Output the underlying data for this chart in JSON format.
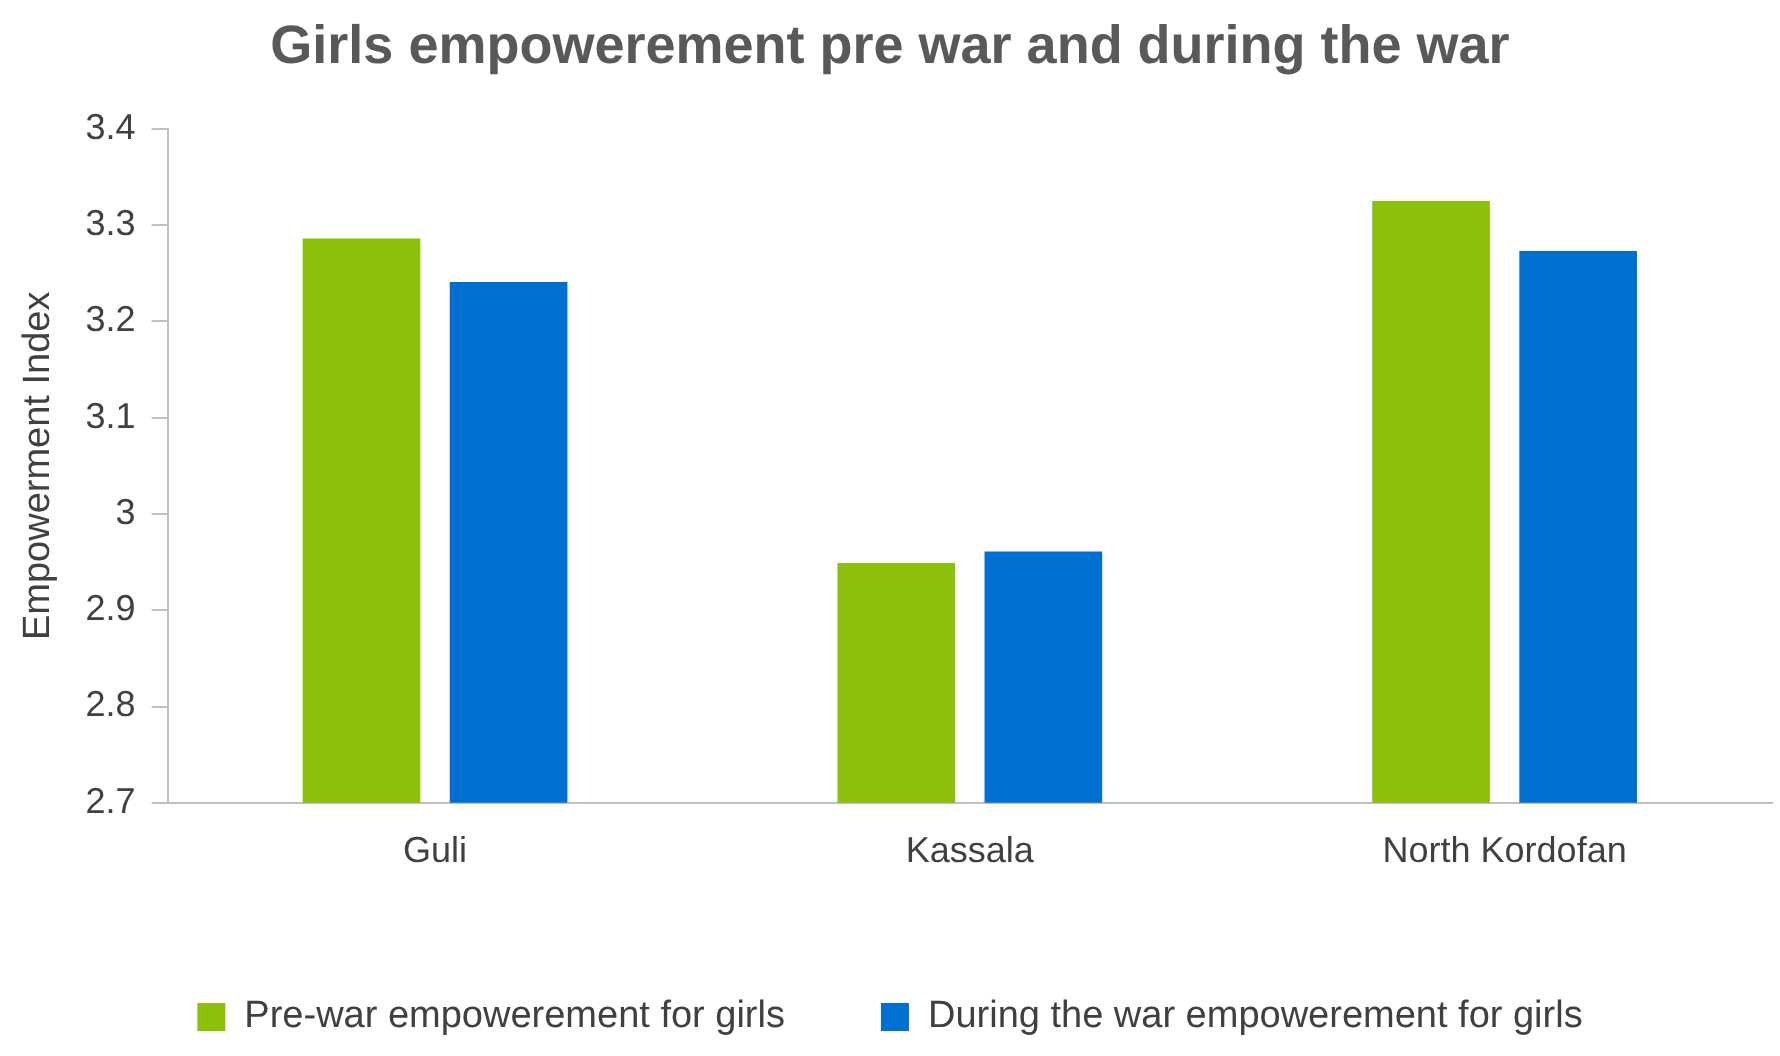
{
  "chart_data": {
    "type": "bar",
    "title": "Girls empowerement pre war and during the war",
    "ylabel": "Empowerment Index",
    "categories": [
      "Guli",
      "Kassala",
      "North Kordofan"
    ],
    "series": [
      {
        "name": "Pre-war empowerement for girls",
        "color": "#8bc10a",
        "values": [
          3.286,
          2.949,
          3.325
        ]
      },
      {
        "name": "During the war empowerement for girls",
        "color": "#0070d0",
        "values": [
          3.241,
          2.961,
          3.273
        ]
      }
    ],
    "ylim": [
      2.7,
      3.4
    ],
    "yticks": [
      2.7,
      2.8,
      2.9,
      3,
      3.1,
      3.2,
      3.3,
      3.4
    ],
    "grid": false,
    "legend": "bottom"
  }
}
